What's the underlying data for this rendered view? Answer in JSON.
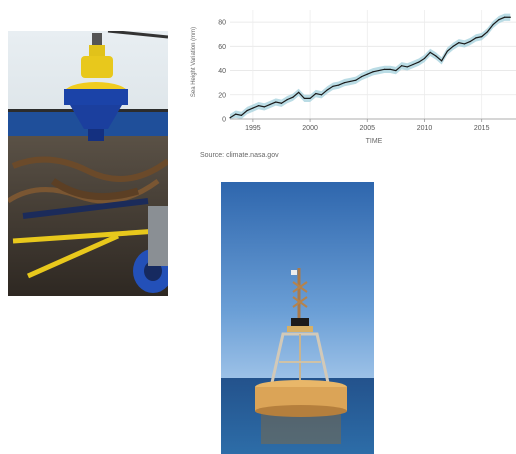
{
  "figure": {
    "source_text": "Source: climate.nasa.gov"
  },
  "photos": {
    "deck": {
      "subject": "yellow-buoy-on-ship-deck"
    },
    "sea": {
      "subject": "buoy-floating-at-sea"
    }
  },
  "chart_data": {
    "type": "line",
    "title": "",
    "xlabel": "TIME",
    "ylabel": "Sea Height Variation (mm)",
    "xlim": [
      1993,
      2018
    ],
    "ylim": [
      0,
      90
    ],
    "x_ticks": [
      1995,
      2000,
      2005,
      2010,
      2015
    ],
    "y_ticks": [
      0,
      20,
      40,
      60,
      80
    ],
    "grid": true,
    "colors": {
      "line": "#1a1a1a",
      "band": "#a9d3df"
    },
    "series": [
      {
        "x": [
          1993.0,
          1993.5,
          1994.0,
          1994.5,
          1995.0,
          1995.5,
          1996.0,
          1996.5,
          1997.0,
          1997.5,
          1998.0,
          1998.5,
          1999.0,
          1999.5,
          2000.0,
          2000.5,
          2001.0,
          2001.5,
          2002.0,
          2002.5,
          2003.0,
          2003.5,
          2004.0,
          2004.5,
          2005.0,
          2005.5,
          2006.0,
          2006.5,
          2007.0,
          2007.5,
          2008.0,
          2008.5,
          2009.0,
          2009.5,
          2010.0,
          2010.5,
          2011.0,
          2011.5,
          2012.0,
          2012.5,
          2013.0,
          2013.5,
          2014.0,
          2014.5,
          2015.0,
          2015.5,
          2016.0,
          2016.5,
          2017.0,
          2017.5
        ],
        "y": [
          1,
          4,
          3,
          7,
          9,
          11,
          10,
          12,
          14,
          13,
          16,
          18,
          22,
          17,
          17,
          21,
          20,
          24,
          27,
          28,
          30,
          31,
          32,
          35,
          37,
          39,
          40,
          41,
          41,
          40,
          44,
          43,
          45,
          47,
          50,
          55,
          52,
          48,
          56,
          60,
          63,
          62,
          64,
          67,
          68,
          72,
          78,
          82,
          84,
          84
        ]
      }
    ]
  }
}
